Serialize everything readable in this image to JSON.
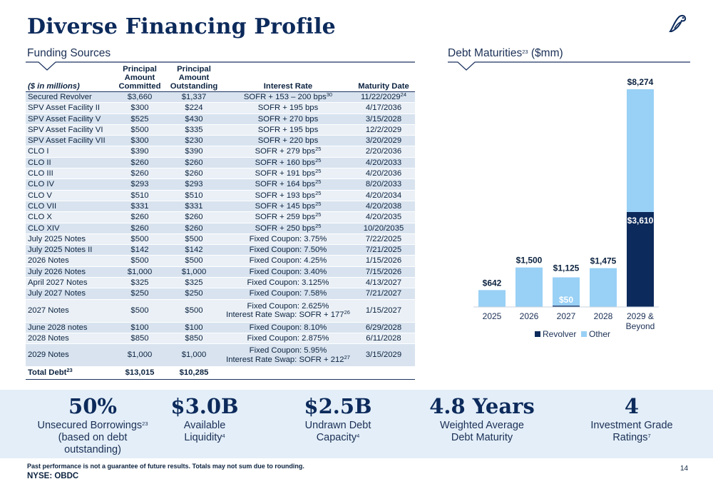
{
  "page": {
    "title": "Diverse Financing Profile",
    "page_number": "14",
    "ticker": "NYSE: OBDC",
    "footnote": "Past performance is not a guarantee of future results.  Totals may not sum due to rounding."
  },
  "funding": {
    "section_title": "Funding Sources",
    "headers": {
      "label": "($ in millions)",
      "committed": "Principal Amount Committed",
      "outstanding": "Principal Amount Outstanding",
      "rate": "Interest Rate",
      "maturity": "Maturity Date"
    },
    "rows": [
      {
        "name": "Secured Revolver",
        "committed": "$3,660",
        "outstanding": "$1,337",
        "rate": "SOFR + 153 – 200 bps",
        "rate_sup": "30",
        "rate2": "",
        "rate2_sup": "",
        "maturity": "11/22/2029",
        "maturity_sup": "24"
      },
      {
        "name": "SPV Asset Facility II",
        "committed": "$300",
        "outstanding": "$224",
        "rate": "SOFR + 195 bps",
        "rate_sup": "",
        "rate2": "",
        "rate2_sup": "",
        "maturity": "4/17/2036",
        "maturity_sup": ""
      },
      {
        "name": "SPV Asset Facility V",
        "committed": "$525",
        "outstanding": "$430",
        "rate": "SOFR + 270 bps",
        "rate_sup": "",
        "rate2": "",
        "rate2_sup": "",
        "maturity": "3/15/2028",
        "maturity_sup": ""
      },
      {
        "name": "SPV Asset Facility VI",
        "committed": "$500",
        "outstanding": "$335",
        "rate": "SOFR + 195 bps",
        "rate_sup": "",
        "rate2": "",
        "rate2_sup": "",
        "maturity": "12/2/2029",
        "maturity_sup": ""
      },
      {
        "name": "SPV Asset Facility VII",
        "committed": "$300",
        "outstanding": "$230",
        "rate": "SOFR + 220 bps",
        "rate_sup": "",
        "rate2": "",
        "rate2_sup": "",
        "maturity": "3/20/2029",
        "maturity_sup": ""
      },
      {
        "name": "CLO I",
        "committed": "$390",
        "outstanding": "$390",
        "rate": "SOFR + 279 bps",
        "rate_sup": "25",
        "rate2": "",
        "rate2_sup": "",
        "maturity": "2/20/2036",
        "maturity_sup": ""
      },
      {
        "name": "CLO II",
        "committed": "$260",
        "outstanding": "$260",
        "rate": "SOFR + 160 bps",
        "rate_sup": "25",
        "rate2": "",
        "rate2_sup": "",
        "maturity": "4/20/2033",
        "maturity_sup": ""
      },
      {
        "name": "CLO III",
        "committed": "$260",
        "outstanding": "$260",
        "rate": "SOFR + 191 bps",
        "rate_sup": "25",
        "rate2": "",
        "rate2_sup": "",
        "maturity": "4/20/2036",
        "maturity_sup": ""
      },
      {
        "name": "CLO IV",
        "committed": "$293",
        "outstanding": "$293",
        "rate": "SOFR + 164 bps",
        "rate_sup": "25",
        "rate2": "",
        "rate2_sup": "",
        "maturity": "8/20/2033",
        "maturity_sup": ""
      },
      {
        "name": "CLO V",
        "committed": "$510",
        "outstanding": "$510",
        "rate": "SOFR + 193 bps",
        "rate_sup": "25",
        "rate2": "",
        "rate2_sup": "",
        "maturity": "4/20/2034",
        "maturity_sup": ""
      },
      {
        "name": "CLO VII",
        "committed": "$331",
        "outstanding": "$331",
        "rate": "SOFR + 145 bps",
        "rate_sup": "25",
        "rate2": "",
        "rate2_sup": "",
        "maturity": "4/20/2038",
        "maturity_sup": ""
      },
      {
        "name": "CLO X",
        "committed": "$260",
        "outstanding": "$260",
        "rate": "SOFR + 259 bps",
        "rate_sup": "25",
        "rate2": "",
        "rate2_sup": "",
        "maturity": "4/20/2035",
        "maturity_sup": ""
      },
      {
        "name": "CLO XIV",
        "committed": "$260",
        "outstanding": "$260",
        "rate": "SOFR + 250 bps",
        "rate_sup": "25",
        "rate2": "",
        "rate2_sup": "",
        "maturity": "10/20/2035",
        "maturity_sup": ""
      },
      {
        "name": "July 2025 Notes",
        "committed": "$500",
        "outstanding": "$500",
        "rate": "Fixed Coupon: 3.75%",
        "rate_sup": "",
        "rate2": "",
        "rate2_sup": "",
        "maturity": "7/22/2025",
        "maturity_sup": ""
      },
      {
        "name": "July 2025 Notes II",
        "committed": "$142",
        "outstanding": "$142",
        "rate": "Fixed Coupon: 7.50%",
        "rate_sup": "",
        "rate2": "",
        "rate2_sup": "",
        "maturity": "7/21/2025",
        "maturity_sup": ""
      },
      {
        "name": "2026 Notes",
        "committed": "$500",
        "outstanding": "$500",
        "rate": "Fixed Coupon: 4.25%",
        "rate_sup": "",
        "rate2": "",
        "rate2_sup": "",
        "maturity": "1/15/2026",
        "maturity_sup": ""
      },
      {
        "name": "July 2026 Notes",
        "committed": "$1,000",
        "outstanding": "$1,000",
        "rate": "Fixed Coupon: 3.40%",
        "rate_sup": "",
        "rate2": "",
        "rate2_sup": "",
        "maturity": "7/15/2026",
        "maturity_sup": ""
      },
      {
        "name": "April 2027 Notes",
        "committed": "$325",
        "outstanding": "$325",
        "rate": "Fixed Coupon: 3.125%",
        "rate_sup": "",
        "rate2": "",
        "rate2_sup": "",
        "maturity": "4/13/2027",
        "maturity_sup": ""
      },
      {
        "name": "July 2027 Notes",
        "committed": "$250",
        "outstanding": "$250",
        "rate": "Fixed Coupon: 7.58%",
        "rate_sup": "",
        "rate2": "",
        "rate2_sup": "",
        "maturity": "7/21/2027",
        "maturity_sup": ""
      },
      {
        "name": "2027 Notes",
        "committed": "$500",
        "outstanding": "$500",
        "rate": "Fixed Coupon: 2.625%",
        "rate_sup": "",
        "rate2": "Interest Rate Swap: SOFR + 177",
        "rate2_sup": "26",
        "maturity": "1/15/2027",
        "maturity_sup": ""
      },
      {
        "name": "June 2028 notes",
        "committed": "$100",
        "outstanding": "$100",
        "rate": "Fixed Coupon: 8.10%",
        "rate_sup": "",
        "rate2": "",
        "rate2_sup": "",
        "maturity": "6/29/2028",
        "maturity_sup": ""
      },
      {
        "name": "2028 Notes",
        "committed": "$850",
        "outstanding": "$850",
        "rate": "Fixed Coupon: 2.875%",
        "rate_sup": "",
        "rate2": "",
        "rate2_sup": "",
        "maturity": "6/11/2028",
        "maturity_sup": ""
      },
      {
        "name": "2029 Notes",
        "committed": "$1,000",
        "outstanding": "$1,000",
        "rate": "Fixed Coupon: 5.95%",
        "rate_sup": "",
        "rate2": "Interest Rate Swap: SOFR + 212",
        "rate2_sup": "27",
        "maturity": "3/15/2029",
        "maturity_sup": ""
      }
    ],
    "total": {
      "name": "Total Debt",
      "name_sup": "23",
      "committed": "$13,015",
      "outstanding": "$10,285"
    }
  },
  "maturities": {
    "section_title": "Debt Maturities",
    "section_title_sup": "23",
    "section_title_suffix": " ($mm)"
  },
  "chart_data": {
    "type": "bar",
    "stacked": true,
    "categories": [
      "2025",
      "2026",
      "2027",
      "2028",
      "2029 & Beyond"
    ],
    "series": [
      {
        "name": "Revolver",
        "values": [
          0,
          0,
          50,
          0,
          3610
        ],
        "color": "#0c2a5b"
      },
      {
        "name": "Other",
        "values": [
          642,
          1500,
          1075,
          1475,
          4664
        ],
        "color": "#99d0f5"
      }
    ],
    "total_labels": [
      "$642",
      "$1,500",
      "$1,125",
      "$1,475",
      "$8,274"
    ],
    "segment_labels": [
      {
        "category": "2027",
        "text": "$50"
      },
      {
        "category": "2029 & Beyond",
        "text": "$3,610"
      }
    ],
    "ylim": [
      0,
      8274
    ],
    "grid": false,
    "legend": "bottom"
  },
  "stats": [
    {
      "value": "50%",
      "line1": "Unsecured Borrowings",
      "sup": "23",
      "line2": "(based on debt",
      "line3": "outstanding)"
    },
    {
      "value": "$3.0B",
      "line1": "Available",
      "sup": "",
      "line2": "Liquidity",
      "line2_sup": "4",
      "line3": ""
    },
    {
      "value": "$2.5B",
      "line1": "Undrawn Debt",
      "sup": "",
      "line2": "Capacity",
      "line2_sup": "4",
      "line3": ""
    },
    {
      "value": "4.8 Years",
      "line1": "Weighted Average",
      "sup": "",
      "line2": "Debt Maturity",
      "line2_sup": "",
      "line3": ""
    },
    {
      "value": "4",
      "line1": "Investment Grade",
      "sup": "",
      "line2": "Ratings",
      "line2_sup": "7",
      "line3": ""
    }
  ],
  "colors": {
    "navy": "#0c2a5b",
    "light_blue": "#99d0f5",
    "band": "#e3eef8",
    "row_a": "#d8e3ef",
    "row_b": "#eaf0f6"
  }
}
